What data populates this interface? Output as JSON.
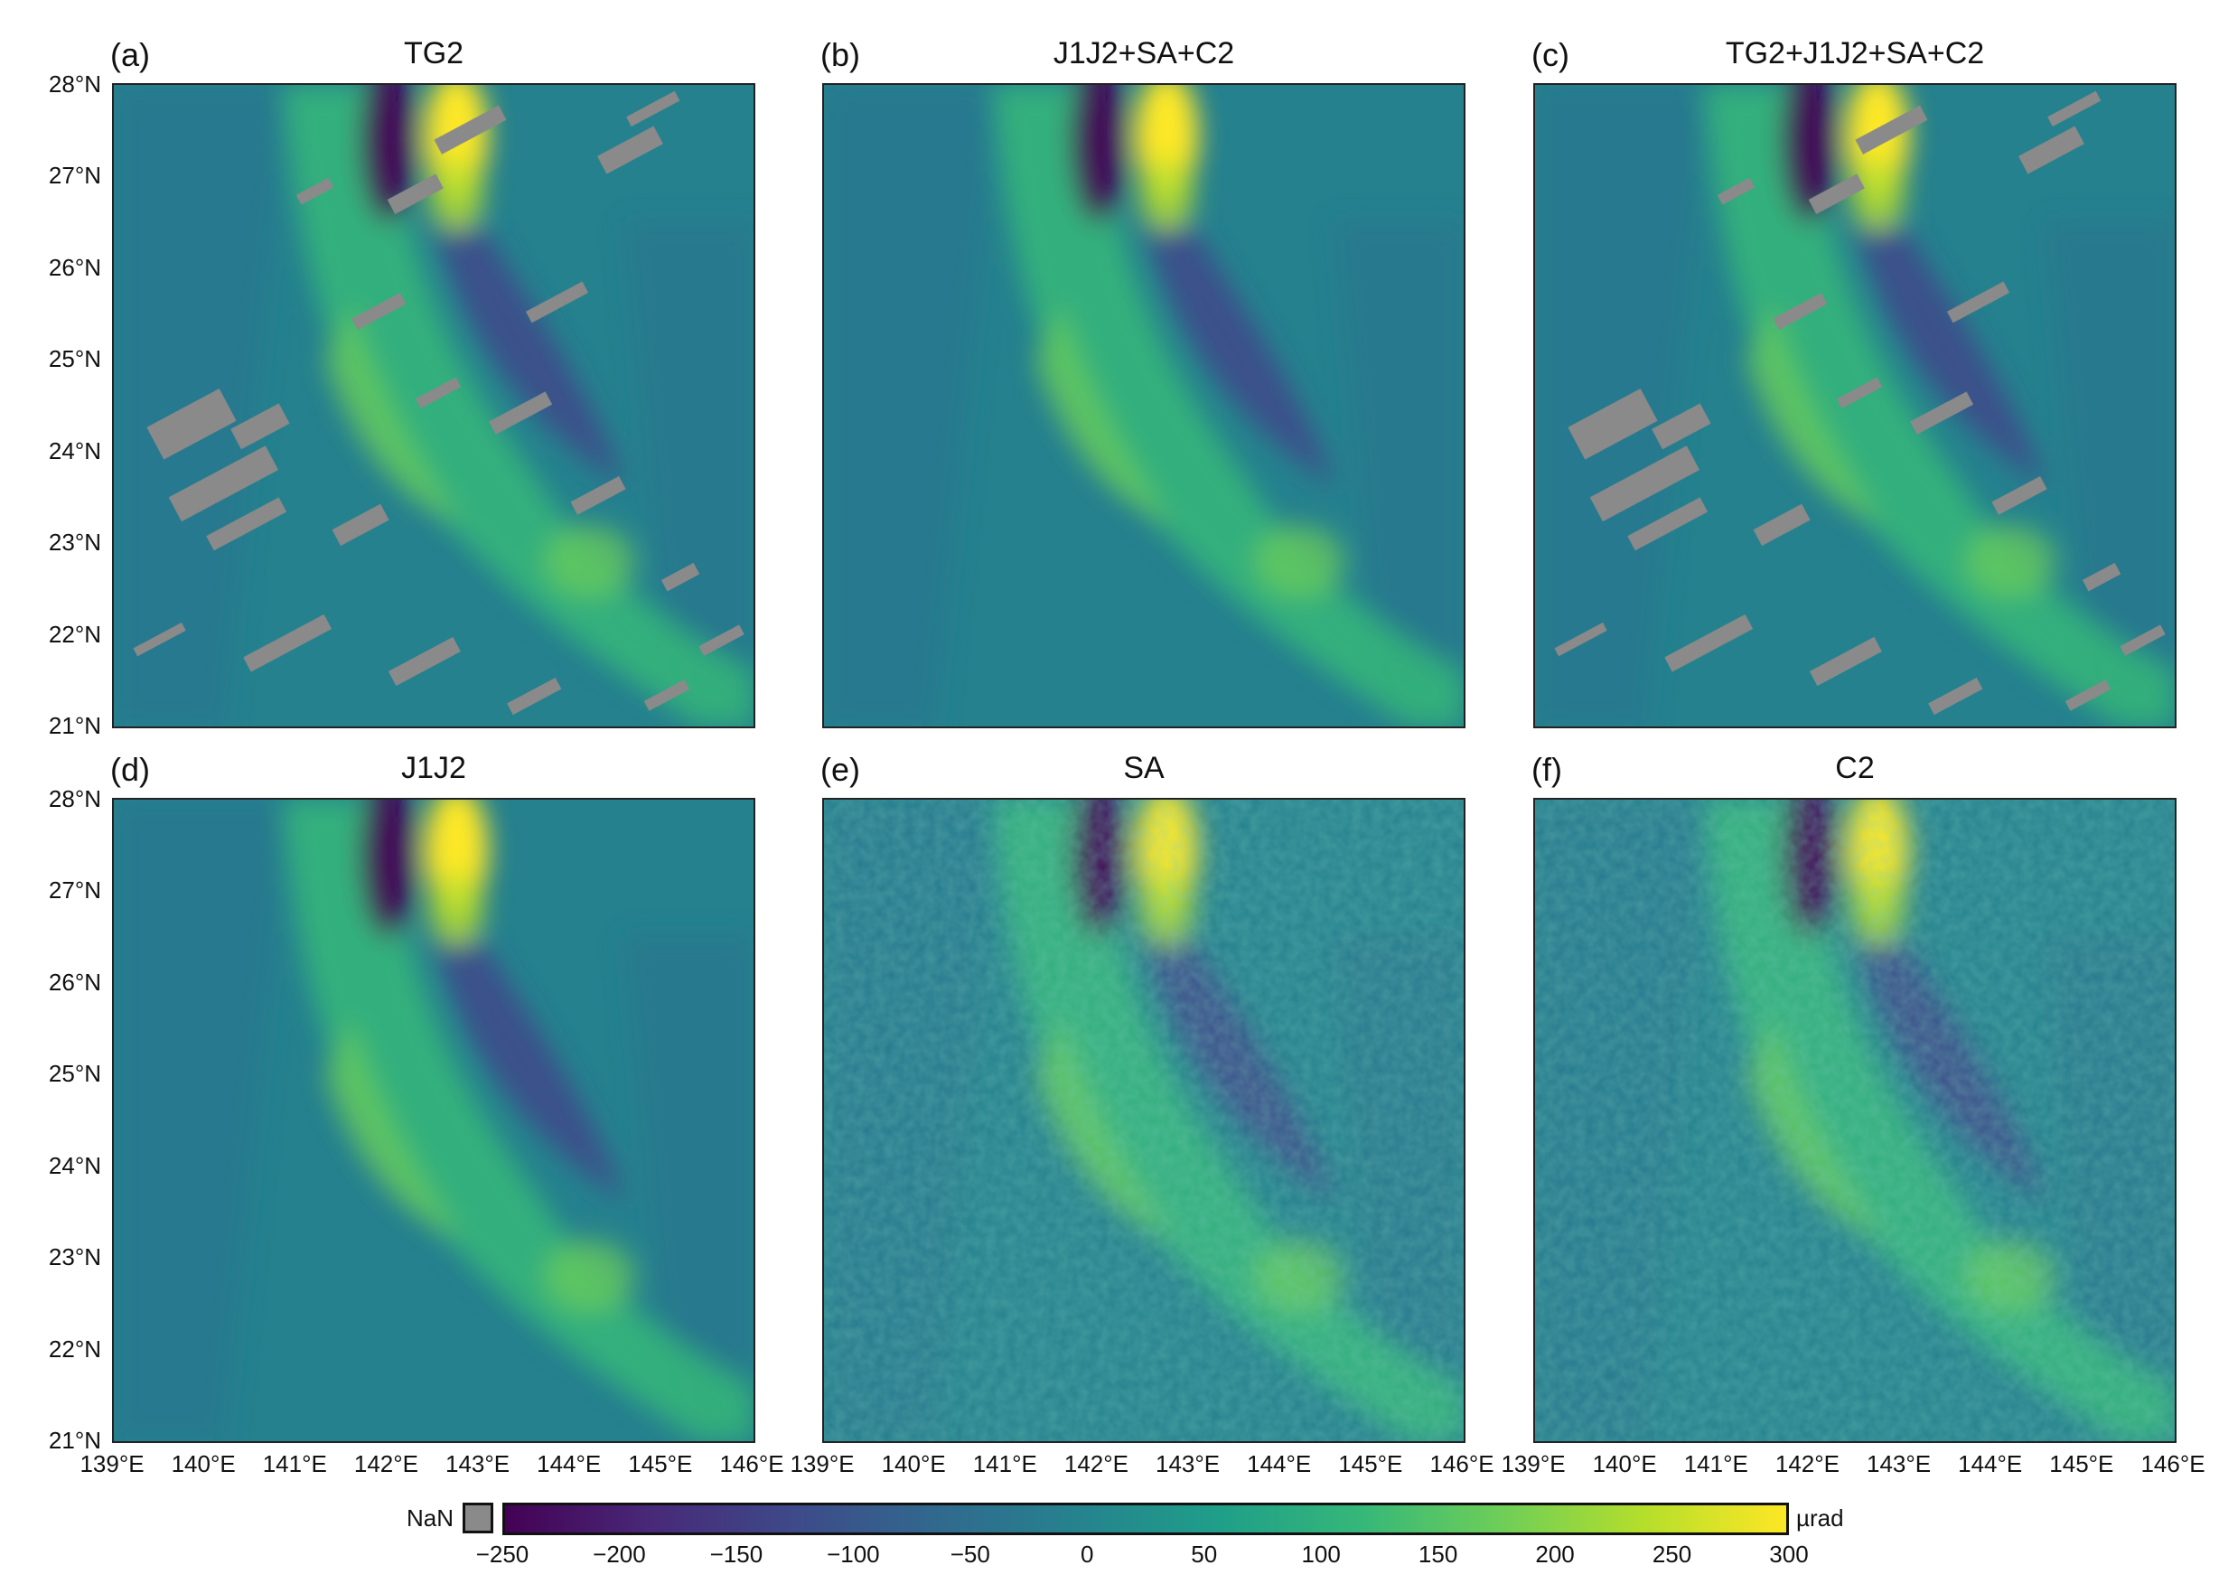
{
  "colors": {
    "nan": "#8a8a8a",
    "frame": "#222222",
    "colormap": [
      "#440154",
      "#482878",
      "#3e4989",
      "#31688e",
      "#26828e",
      "#1f9e89",
      "#35b779",
      "#6ece58",
      "#b5de2b",
      "#fde725"
    ]
  },
  "panels": [
    {
      "label": "(a)",
      "title": "TG2",
      "gaps": true,
      "noise": false
    },
    {
      "label": "(b)",
      "title": "J1J2+SA+C2",
      "gaps": false,
      "noise": false
    },
    {
      "label": "(c)",
      "title": "TG2+J1J2+SA+C2",
      "gaps": true,
      "noise": false
    },
    {
      "label": "(d)",
      "title": "J1J2",
      "gaps": false,
      "noise": false
    },
    {
      "label": "(e)",
      "title": "SA",
      "gaps": false,
      "noise": true
    },
    {
      "label": "(f)",
      "title": "C2",
      "gaps": false,
      "noise": true
    }
  ],
  "lat_labels": [
    "28°N",
    "27°N",
    "26°N",
    "25°N",
    "24°N",
    "23°N",
    "22°N",
    "21°N"
  ],
  "lon_labels": [
    "139°E",
    "140°E",
    "141°E",
    "142°E",
    "143°E",
    "144°E",
    "145°E",
    "146°E"
  ],
  "colorbar": {
    "nan_label": "NaN",
    "unit": "µrad",
    "ticks": [
      "−250",
      "−200",
      "−150",
      "−100",
      "−50",
      "0",
      "50",
      "100",
      "150",
      "200",
      "250",
      "300"
    ],
    "range": [
      -250,
      300
    ]
  }
}
